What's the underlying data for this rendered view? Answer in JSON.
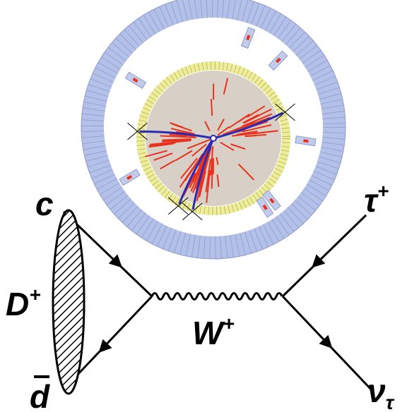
{
  "diagram": {
    "quark": "c",
    "meson": {
      "label": "D",
      "charge": "+"
    },
    "antiquark": "d",
    "boson": {
      "label": "W",
      "charge": "+"
    },
    "lepton": {
      "label": "τ",
      "charge": "+"
    },
    "neutrino": {
      "label": "ν",
      "flavor": "τ"
    }
  }
}
